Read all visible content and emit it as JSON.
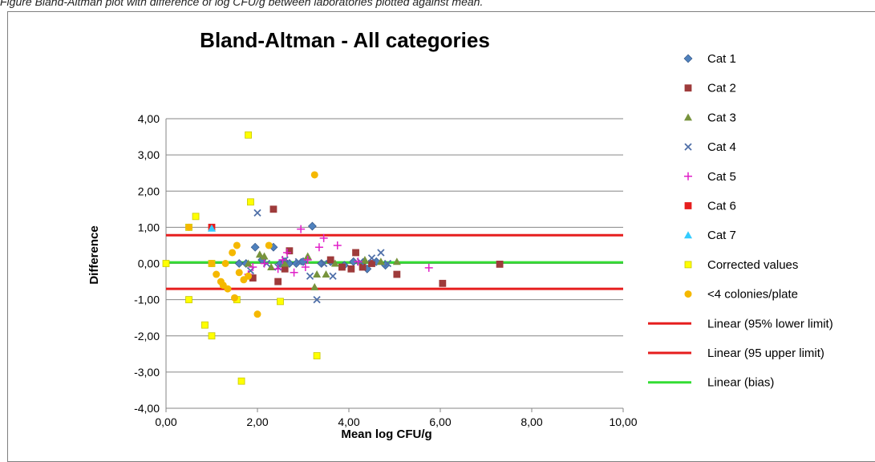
{
  "caption": "Figure    Bland-Altman plot with difference of log CFU/g between laboratories plotted against mean.",
  "chart_data": {
    "type": "scatter",
    "title": "Bland-Altman - All categories",
    "xlabel": "Mean log CFU/g",
    "ylabel": "Difference",
    "xlim": [
      0,
      10
    ],
    "ylim": [
      -4,
      4
    ],
    "xticks": [
      "0,00",
      "2,00",
      "4,00",
      "6,00",
      "8,00",
      "10,00"
    ],
    "yticks": [
      "4,00",
      "3,00",
      "2,00",
      "1,00",
      "0,00",
      "-1,00",
      "-2,00",
      "-3,00",
      "-4,00"
    ],
    "grid": "horizontal",
    "legend_position": "right",
    "series": [
      {
        "name": "Cat 1",
        "marker": "diamond",
        "color": "#4F81BD",
        "points": [
          [
            1.6,
            0.0
          ],
          [
            1.75,
            0.0
          ],
          [
            1.95,
            0.45
          ],
          [
            2.1,
            0.1
          ],
          [
            2.35,
            0.45
          ],
          [
            2.5,
            0.0
          ],
          [
            2.6,
            0.05
          ],
          [
            2.7,
            0.0
          ],
          [
            2.85,
            0.0
          ],
          [
            3.0,
            0.05
          ],
          [
            3.2,
            1.03
          ],
          [
            3.4,
            0.0
          ],
          [
            3.6,
            0.05
          ],
          [
            3.9,
            -0.05
          ],
          [
            4.1,
            0.05
          ],
          [
            4.4,
            -0.15
          ],
          [
            4.6,
            0.05
          ],
          [
            4.8,
            -0.05
          ]
        ]
      },
      {
        "name": "Cat 2",
        "marker": "square",
        "color": "#9E3B3B",
        "points": [
          [
            1.9,
            -0.4
          ],
          [
            2.35,
            1.5
          ],
          [
            2.45,
            -0.5
          ],
          [
            2.6,
            -0.15
          ],
          [
            2.7,
            0.35
          ],
          [
            3.6,
            0.1
          ],
          [
            3.85,
            -0.1
          ],
          [
            4.05,
            -0.15
          ],
          [
            4.15,
            0.3
          ],
          [
            4.3,
            -0.1
          ],
          [
            4.5,
            0.0
          ],
          [
            5.05,
            -0.3
          ],
          [
            6.05,
            -0.55
          ],
          [
            7.3,
            -0.02
          ]
        ]
      },
      {
        "name": "Cat 3",
        "marker": "triangle",
        "color": "#77933C",
        "points": [
          [
            1.8,
            0.0
          ],
          [
            2.05,
            0.25
          ],
          [
            2.15,
            0.2
          ],
          [
            2.3,
            -0.1
          ],
          [
            2.6,
            0.0
          ],
          [
            3.1,
            0.2
          ],
          [
            3.25,
            -0.65
          ],
          [
            3.3,
            -0.3
          ],
          [
            3.5,
            -0.3
          ],
          [
            3.7,
            0.0
          ],
          [
            4.35,
            0.1
          ],
          [
            4.7,
            0.05
          ],
          [
            5.05,
            0.05
          ]
        ]
      },
      {
        "name": "Cat 4",
        "marker": "x",
        "color": "#4F6FA8",
        "points": [
          [
            1.85,
            -0.2
          ],
          [
            2.0,
            1.4
          ],
          [
            2.2,
            0.0
          ],
          [
            2.45,
            -0.1
          ],
          [
            2.6,
            0.1
          ],
          [
            2.9,
            0.05
          ],
          [
            3.15,
            -0.35
          ],
          [
            3.3,
            -1.0
          ],
          [
            3.45,
            0.0
          ],
          [
            3.65,
            -0.35
          ],
          [
            4.25,
            0.05
          ],
          [
            4.5,
            0.15
          ],
          [
            4.7,
            0.3
          ],
          [
            4.85,
            0.0
          ]
        ]
      },
      {
        "name": "Cat 5",
        "marker": "plus",
        "color": "#E020C8",
        "points": [
          [
            1.8,
            -0.3
          ],
          [
            1.9,
            -0.1
          ],
          [
            2.15,
            0.0
          ],
          [
            2.45,
            -0.15
          ],
          [
            2.55,
            0.1
          ],
          [
            2.65,
            0.3
          ],
          [
            2.8,
            -0.25
          ],
          [
            2.95,
            0.95
          ],
          [
            3.05,
            -0.1
          ],
          [
            3.1,
            0.1
          ],
          [
            3.35,
            0.45
          ],
          [
            3.45,
            0.7
          ],
          [
            3.75,
            0.5
          ],
          [
            4.2,
            0.05
          ],
          [
            5.75,
            -0.12
          ]
        ]
      },
      {
        "name": "Cat 6",
        "marker": "square",
        "color": "#E61E1E",
        "points": [
          [
            1.0,
            1.0
          ]
        ]
      },
      {
        "name": "Cat 7",
        "marker": "triangle",
        "color": "#33CCFF",
        "points": [
          [
            1.0,
            0.97
          ]
        ]
      },
      {
        "name": "Corrected values",
        "marker": "square",
        "color": "#FFFF00",
        "points": [
          [
            0.0,
            0.0
          ],
          [
            0.5,
            1.0
          ],
          [
            0.5,
            -1.0
          ],
          [
            0.65,
            1.3
          ],
          [
            0.85,
            -1.7
          ],
          [
            1.0,
            -2.0
          ],
          [
            1.0,
            0.0
          ],
          [
            1.55,
            -1.0
          ],
          [
            1.65,
            -3.25
          ],
          [
            1.8,
            3.55
          ],
          [
            1.85,
            1.7
          ],
          [
            2.5,
            -1.05
          ],
          [
            3.3,
            -2.55
          ]
        ]
      },
      {
        "name": "<4 colonies/plate",
        "marker": "circle",
        "color": "#F5B800",
        "points": [
          [
            0.5,
            1.0
          ],
          [
            1.0,
            0.0
          ],
          [
            1.1,
            -0.3
          ],
          [
            1.2,
            -0.5
          ],
          [
            1.25,
            -0.6
          ],
          [
            1.3,
            0.0
          ],
          [
            1.35,
            -0.7
          ],
          [
            1.45,
            0.3
          ],
          [
            1.5,
            -0.95
          ],
          [
            1.55,
            0.5
          ],
          [
            1.6,
            -0.25
          ],
          [
            1.7,
            -0.45
          ],
          [
            1.8,
            -0.35
          ],
          [
            2.0,
            -1.4
          ],
          [
            2.25,
            0.5
          ],
          [
            3.25,
            2.45
          ]
        ]
      }
    ],
    "lines": [
      {
        "name": "Linear (95% lower limit)",
        "color": "#E61E1E",
        "y": -0.7
      },
      {
        "name": "Linear (95 upper limit)",
        "color": "#E61E1E",
        "y": 0.78
      },
      {
        "name": "Linear (bias)",
        "color": "#33DD33",
        "y": 0.03
      }
    ]
  }
}
